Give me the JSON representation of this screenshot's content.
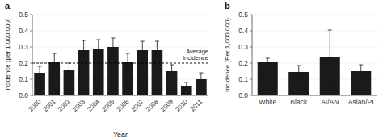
{
  "chart_data": [
    {
      "type": "bar",
      "panel_label": "a",
      "xlabel": "Year",
      "ylabel": "Incidence (per 1,000,000)",
      "categories": [
        "2000",
        "2001",
        "2002",
        "2003",
        "2004",
        "2005",
        "2006",
        "2007",
        "2008",
        "2009",
        "2010",
        "2011"
      ],
      "values": [
        0.14,
        0.21,
        0.16,
        0.28,
        0.29,
        0.3,
        0.21,
        0.28,
        0.28,
        0.15,
        0.06,
        0.1
      ],
      "errors": [
        0.04,
        0.05,
        0.04,
        0.06,
        0.055,
        0.055,
        0.05,
        0.055,
        0.055,
        0.04,
        0.02,
        0.04
      ],
      "average_line": 0.2,
      "annotation": "Average\nIncidence",
      "color": "#1a1a1a",
      "ylim": [
        0,
        0.5
      ],
      "yticks": [
        {
          "value": 0.0,
          "label": "0.0"
        },
        0.1,
        0.2,
        0.3,
        0.4,
        0.5
      ]
    },
    {
      "type": "bar",
      "panel_label": "b",
      "ylabel": "Incidence (Per 1,000,000)",
      "categories": [
        "White",
        "Black",
        "AI/AN",
        "Asian/PI"
      ],
      "values": [
        0.21,
        0.145,
        0.235,
        0.15
      ],
      "errors_lo": [
        0.02,
        0.04,
        0.17,
        0.04
      ],
      "errors_hi": [
        0.02,
        0.04,
        0.17,
        0.04
      ],
      "color": "#1a1a1a",
      "ylim": [
        0,
        0.5
      ],
      "yticks": [
        {
          "value": 0.0,
          "label": "0.0"
        },
        0.1,
        0.2,
        0.3,
        0.4,
        0.5
      ]
    }
  ]
}
